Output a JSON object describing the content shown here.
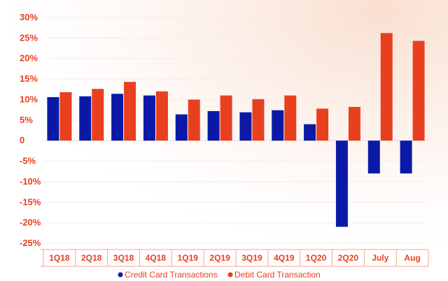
{
  "chart_data": {
    "type": "bar",
    "categories": [
      "1Q18",
      "2Q18",
      "3Q18",
      "4Q18",
      "1Q19",
      "2Q19",
      "3Q19",
      "4Q19",
      "1Q20",
      "2Q20",
      "July",
      "Aug"
    ],
    "series": [
      {
        "name": "Credit Card Transactions",
        "color": "#0a1aa6",
        "values": [
          10.6,
          10.8,
          11.4,
          11.0,
          6.4,
          7.2,
          6.9,
          7.4,
          4.0,
          -21.0,
          -8.0,
          -8.0
        ]
      },
      {
        "name": "Debit Card Transaction",
        "color": "#e8401f",
        "values": [
          11.8,
          12.6,
          14.3,
          12.0,
          10.0,
          11.0,
          10.1,
          11.0,
          7.8,
          8.2,
          26.2,
          24.3
        ]
      }
    ],
    "ylim": [
      -25,
      30
    ],
    "yticks": [
      30,
      25,
      20,
      15,
      10,
      5,
      0,
      -5,
      -10,
      -15,
      -20,
      -25
    ],
    "ytick_labels": [
      "30%",
      "25%",
      "20%",
      "15%",
      "10%",
      "5%",
      "0",
      "-5%",
      "-10%",
      "-15%",
      "-20%",
      "-25%"
    ],
    "grid": true,
    "legend_position": "bottom",
    "title": "",
    "xlabel": "",
    "ylabel": ""
  },
  "colors": {
    "axis_text": "#e8401f",
    "gridline": "#eeeeee",
    "background_glow": "#f6c4a8"
  }
}
